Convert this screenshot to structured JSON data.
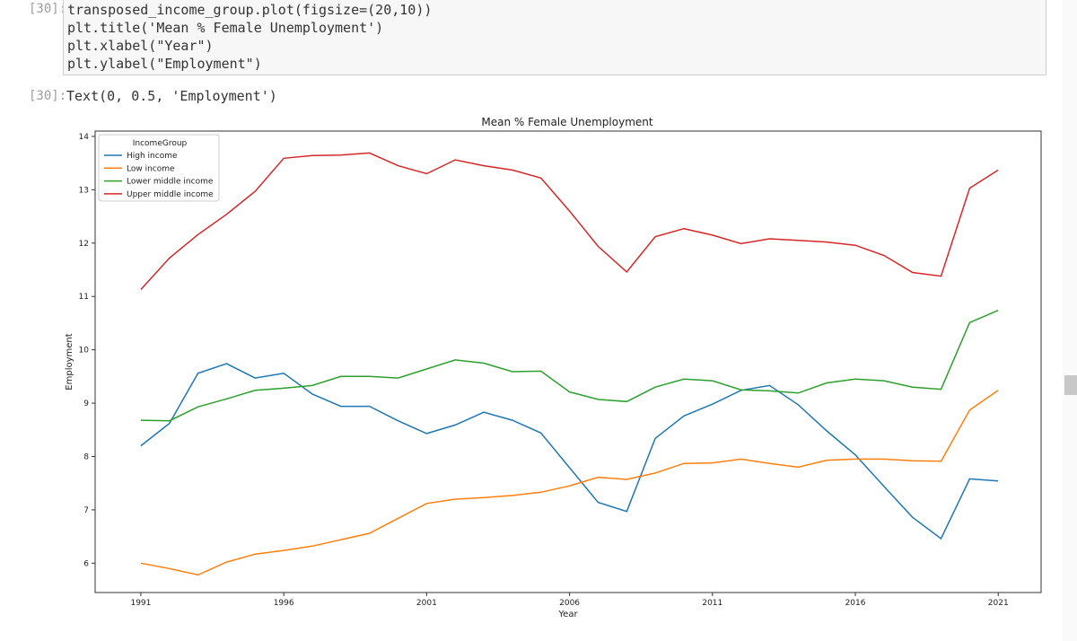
{
  "cell": {
    "in_prompt": "[30]:",
    "out_prompt": "[30]:",
    "code_lines": [
      "transposed_income_group.plot(figsize=(20,10))",
      "plt.title('Mean % Female Unemployment')",
      "plt.xlabel(\"Year\")",
      "plt.ylabel(\"Employment\")"
    ],
    "output_text": "Text(0, 0.5, 'Employment')"
  },
  "chart_data": {
    "type": "line",
    "title": "Mean % Female Unemployment",
    "xlabel": "Year",
    "ylabel": "Employment",
    "xlim": [
      1989.4,
      2022.5
    ],
    "ylim": [
      5.45,
      14.1
    ],
    "x_ticks": [
      1991,
      1996,
      2001,
      2006,
      2011,
      2016,
      2021
    ],
    "y_ticks": [
      6,
      7,
      8,
      9,
      10,
      11,
      12,
      13,
      14
    ],
    "legend_title": "IncomeGroup",
    "legend_position": "top-left",
    "x": [
      1991,
      1992,
      1993,
      1994,
      1995,
      1996,
      1997,
      1998,
      1999,
      2000,
      2001,
      2002,
      2003,
      2004,
      2005,
      2006,
      2007,
      2008,
      2009,
      2010,
      2011,
      2012,
      2013,
      2014,
      2015,
      2016,
      2017,
      2018,
      2019,
      2020,
      2021
    ],
    "series": [
      {
        "name": "High income",
        "color": "#1f77b4",
        "values": [
          8.2,
          8.62,
          9.56,
          9.74,
          9.47,
          9.56,
          9.17,
          8.94,
          8.94,
          8.67,
          8.43,
          8.59,
          8.83,
          8.68,
          8.44,
          7.79,
          7.14,
          6.97,
          8.34,
          8.76,
          8.98,
          9.24,
          9.33,
          8.97,
          8.48,
          8.03,
          7.44,
          6.86,
          6.46,
          7.58,
          7.54
        ]
      },
      {
        "name": "Low income",
        "color": "#ff7f0e",
        "values": [
          6.0,
          5.9,
          5.78,
          6.02,
          6.17,
          6.24,
          6.32,
          6.44,
          6.56,
          6.84,
          7.12,
          7.2,
          7.23,
          7.27,
          7.33,
          7.45,
          7.61,
          7.57,
          7.69,
          7.87,
          7.88,
          7.95,
          7.87,
          7.8,
          7.93,
          7.95,
          7.95,
          7.92,
          7.91,
          8.87,
          9.24
        ]
      },
      {
        "name": "Lower middle income",
        "color": "#2ca02c",
        "values": [
          8.68,
          8.67,
          8.93,
          9.08,
          9.24,
          9.28,
          9.33,
          9.5,
          9.5,
          9.47,
          9.64,
          9.81,
          9.75,
          9.59,
          9.6,
          9.21,
          9.07,
          9.03,
          9.3,
          9.45,
          9.42,
          9.25,
          9.23,
          9.19,
          9.38,
          9.45,
          9.42,
          9.3,
          9.26,
          10.51,
          10.74
        ]
      },
      {
        "name": "Upper middle income",
        "color": "#d62728",
        "values": [
          11.13,
          11.72,
          12.16,
          12.54,
          12.97,
          13.59,
          13.64,
          13.65,
          13.69,
          13.45,
          13.3,
          13.56,
          13.45,
          13.37,
          13.22,
          12.6,
          11.94,
          11.46,
          12.12,
          12.27,
          12.15,
          11.99,
          12.08,
          12.05,
          12.02,
          11.96,
          11.77,
          11.45,
          11.38,
          13.03,
          13.37
        ]
      }
    ]
  }
}
